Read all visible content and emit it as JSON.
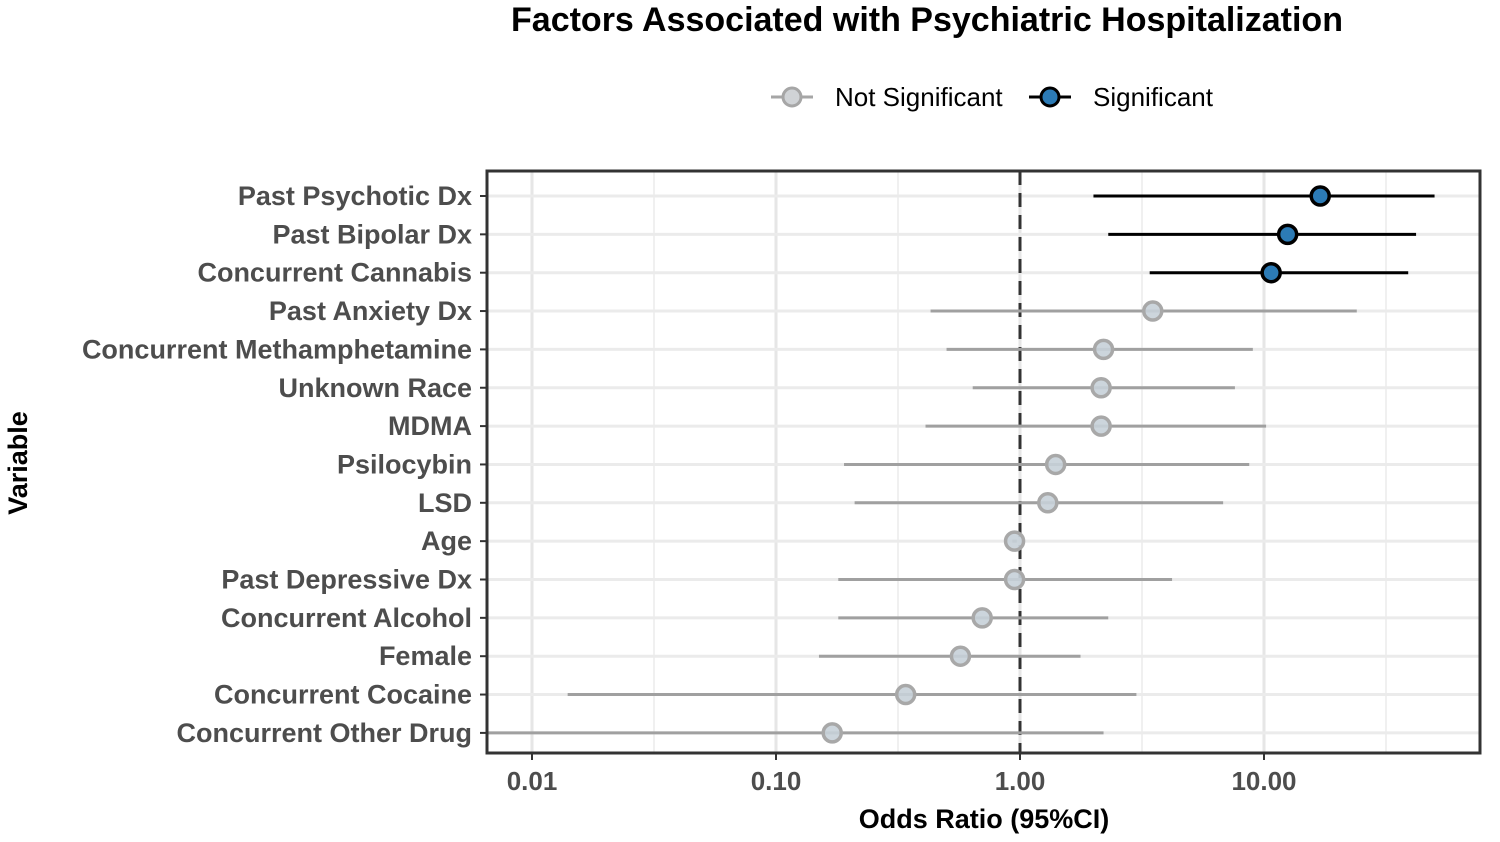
{
  "chart_data": {
    "type": "scatter",
    "subtype": "forest-plot",
    "title": "Factors Associated with Psychiatric Hospitalization",
    "xlabel": "Odds Ratio (95%CI)",
    "ylabel": "Variable",
    "x_scale": "log10",
    "xlim": [
      0.006,
      50
    ],
    "x_ticks": [
      {
        "value": 0.01,
        "label": "0.01"
      },
      {
        "value": 0.1,
        "label": "0.10"
      },
      {
        "value": 1,
        "label": "1.00"
      },
      {
        "value": 10,
        "label": "10.00"
      }
    ],
    "reference_line": 1,
    "grid": true,
    "legend": {
      "position": "top",
      "items": [
        {
          "name": "Not Significant",
          "color": "#bfc4c9",
          "line_color": "#a6a6a6"
        },
        {
          "name": "Significant",
          "color": "#2c7bb6",
          "line_color": "#000000"
        }
      ]
    },
    "points": [
      {
        "label": "Past Psychotic Dx",
        "or": 17.0,
        "lower": 2.0,
        "upper": 50,
        "significant": true
      },
      {
        "label": "Past Bipolar Dx",
        "or": 12.5,
        "lower": 2.3,
        "upper": 42,
        "significant": true
      },
      {
        "label": "Concurrent Cannabis",
        "or": 10.7,
        "lower": 3.4,
        "upper": 39,
        "significant": true
      },
      {
        "label": "Past Anxiety Dx",
        "or": 3.5,
        "lower": 0.43,
        "upper": 24,
        "significant": false
      },
      {
        "label": "Concurrent Methamphetamine",
        "or": 2.2,
        "lower": 0.5,
        "upper": 9.0,
        "significant": false
      },
      {
        "label": "Unknown Race",
        "or": 2.15,
        "lower": 0.64,
        "upper": 7.6,
        "significant": false
      },
      {
        "label": "MDMA",
        "or": 2.15,
        "lower": 0.41,
        "upper": 10.2,
        "significant": false
      },
      {
        "label": "Psilocybin",
        "or": 1.4,
        "lower": 0.19,
        "upper": 8.7,
        "significant": false
      },
      {
        "label": "LSD",
        "or": 1.3,
        "lower": 0.21,
        "upper": 6.8,
        "significant": false
      },
      {
        "label": "Age",
        "or": 0.95,
        "lower": 0.93,
        "upper": 0.97,
        "significant": false
      },
      {
        "label": "Past Depressive Dx",
        "or": 0.95,
        "lower": 0.18,
        "upper": 4.2,
        "significant": false
      },
      {
        "label": "Concurrent Alcohol",
        "or": 0.7,
        "lower": 0.18,
        "upper": 2.3,
        "significant": false
      },
      {
        "label": "Female",
        "or": 0.57,
        "lower": 0.15,
        "upper": 1.77,
        "significant": false
      },
      {
        "label": "Concurrent Cocaine",
        "or": 0.34,
        "lower": 0.014,
        "upper": 3.0,
        "significant": false
      },
      {
        "label": "Concurrent Other Drug",
        "or": 0.17,
        "lower": 0.006,
        "upper": 2.2,
        "significant": false
      }
    ]
  }
}
